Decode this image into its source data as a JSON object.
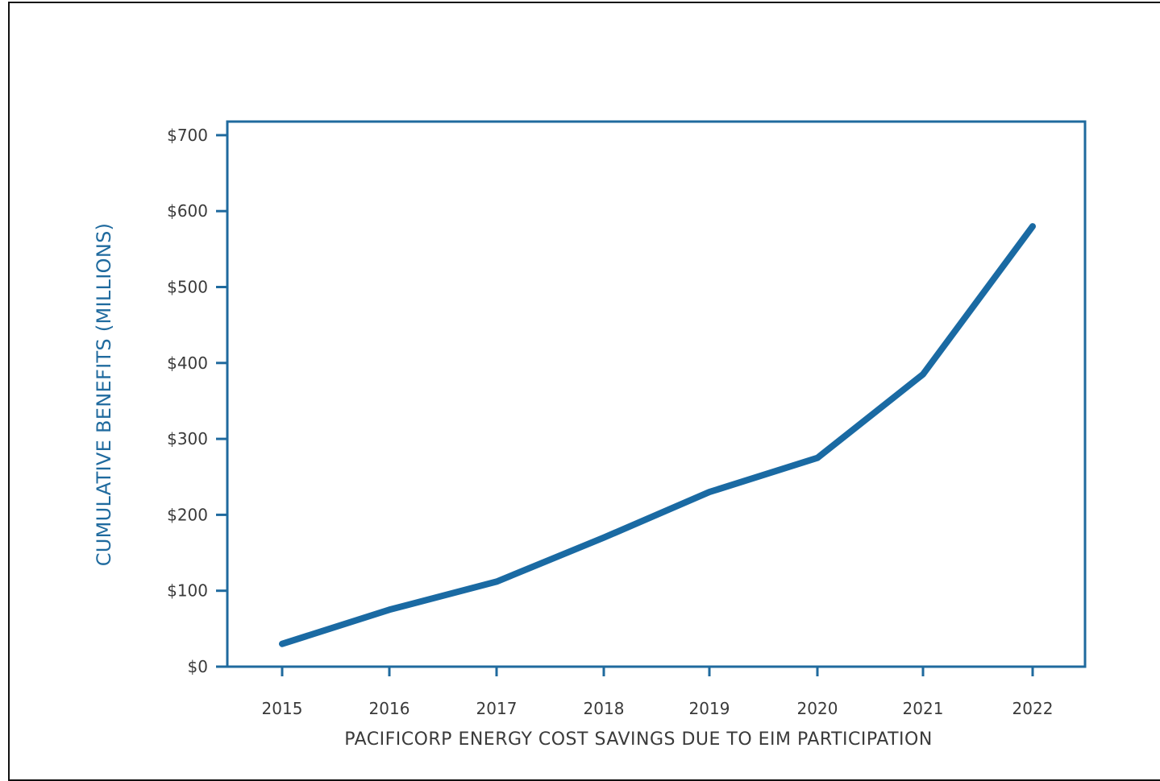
{
  "colors": {
    "accent": "#1f6a9e",
    "line": "#1a6aa3",
    "text": "#3a3a3a",
    "frame": "#111111"
  },
  "chart_data": {
    "type": "line",
    "title": "",
    "xlabel": "PACIFICORP ENERGY COST SAVINGS DUE TO EIM PARTICIPATION",
    "ylabel": "CUMULATIVE BENEFITS (MILLIONS)",
    "categories": [
      "2015",
      "2016",
      "2017",
      "2018",
      "2019",
      "2020",
      "2021",
      "2022"
    ],
    "ylim": [
      0,
      700
    ],
    "yticks": [
      0,
      100,
      200,
      300,
      400,
      500,
      600,
      700
    ],
    "ytick_labels": [
      "$0",
      "$100",
      "$200",
      "$300",
      "$400",
      "$500",
      "$600",
      "$700"
    ],
    "series": [
      {
        "values": [
          30,
          75,
          112,
          170,
          230,
          275,
          385,
          580
        ]
      }
    ],
    "grid": false,
    "legend": "none"
  }
}
